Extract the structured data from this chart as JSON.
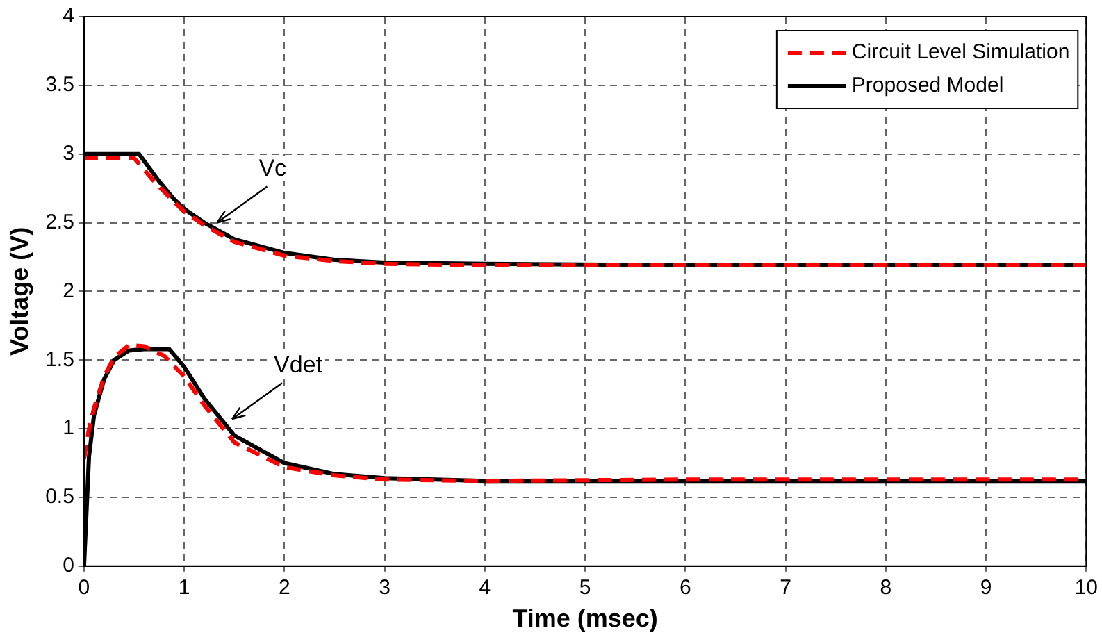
{
  "chart_data": {
    "type": "line",
    "xlabel": "Time (msec)",
    "ylabel": "Voltage (V)",
    "xlim": [
      0,
      10
    ],
    "xticks": [
      0,
      1,
      2,
      3,
      4,
      5,
      6,
      7,
      8,
      9,
      10
    ],
    "ylim": [
      0,
      4
    ],
    "yticks": [
      0,
      0.5,
      1,
      1.5,
      2,
      2.5,
      3,
      3.5,
      4
    ],
    "grid": true,
    "legend": "top right",
    "marker": "none",
    "series": [
      {
        "name": "Circuit Level Simulation",
        "color": "#ff0000",
        "line_style": "dashed",
        "x": [
          0,
          0.5,
          0.7,
          0.9,
          1.0,
          1.2,
          1.5,
          2,
          2.5,
          3,
          4,
          6,
          10
        ],
        "values": [
          2.97,
          2.97,
          2.8,
          2.65,
          2.58,
          2.48,
          2.36,
          2.26,
          2.22,
          2.2,
          2.19,
          2.19,
          2.19
        ]
      },
      {
        "name": "Proposed Model",
        "color": "#000000",
        "line_style": "solid",
        "x": [
          0,
          0.55,
          0.75,
          0.9,
          1.0,
          1.2,
          1.5,
          2,
          2.5,
          3,
          4,
          6,
          10
        ],
        "values": [
          3.0,
          3.0,
          2.8,
          2.67,
          2.6,
          2.5,
          2.38,
          2.28,
          2.23,
          2.21,
          2.2,
          2.19,
          2.19
        ]
      },
      {
        "color": "#ff0000",
        "line_style": "dashed",
        "x": [
          0,
          0.05,
          0.1,
          0.2,
          0.3,
          0.45,
          0.6,
          0.8,
          1.0,
          1.2,
          1.5,
          2,
          2.5,
          3,
          4,
          6,
          10
        ],
        "values": [
          0.78,
          1.0,
          1.15,
          1.38,
          1.52,
          1.61,
          1.6,
          1.53,
          1.38,
          1.17,
          0.9,
          0.72,
          0.66,
          0.63,
          0.62,
          0.63,
          0.63
        ]
      },
      {
        "color": "#000000",
        "line_style": "solid",
        "x": [
          0,
          0.05,
          0.1,
          0.2,
          0.3,
          0.45,
          0.6,
          0.85,
          1.0,
          1.2,
          1.5,
          2,
          2.5,
          3,
          4,
          6,
          10
        ],
        "values": [
          0,
          0.8,
          1.1,
          1.36,
          1.5,
          1.57,
          1.58,
          1.58,
          1.45,
          1.22,
          0.95,
          0.75,
          0.67,
          0.64,
          0.62,
          0.62,
          0.62
        ]
      }
    ],
    "annotations": [
      {
        "text": "Vc",
        "x": 1.3,
        "y": 2.48
      },
      {
        "text": "Vdet",
        "x": 1.45,
        "y": 1.05
      }
    ]
  }
}
